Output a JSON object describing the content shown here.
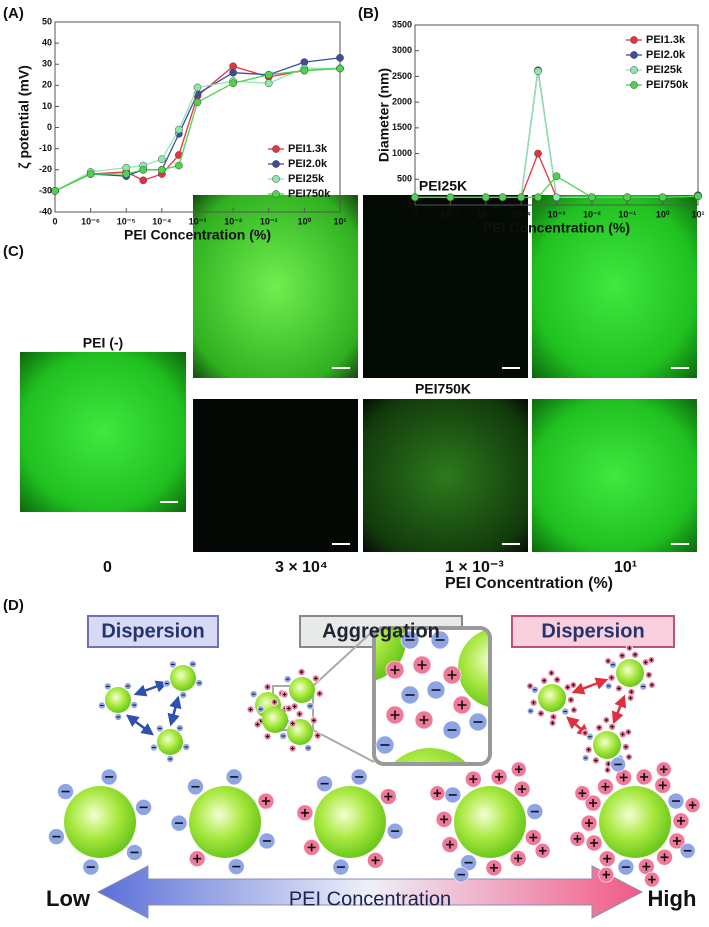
{
  "chart_data": [
    {
      "type": "line",
      "label": "(A)",
      "xlabel": "PEI Concentration (%)",
      "ylabel": "ζ potential (mV)",
      "xscale": "log",
      "xlim": [
        0,
        10
      ],
      "xticks": [
        {
          "value": 0,
          "label": "0"
        },
        {
          "value": 1e-06,
          "label": "10⁻⁶"
        },
        {
          "value": 1e-05,
          "label": "10⁻⁵"
        },
        {
          "value": 0.0001,
          "label": "10⁻⁴"
        },
        {
          "value": 0.001,
          "label": "10⁻³"
        },
        {
          "value": 0.01,
          "label": "10⁻²"
        },
        {
          "value": 0.1,
          "label": "10⁻¹"
        },
        {
          "value": 1,
          "label": "10⁰"
        },
        {
          "value": 10,
          "label": "10¹"
        }
      ],
      "ylim": [
        -40,
        50
      ],
      "yticks": [
        -40,
        -30,
        -20,
        -10,
        0,
        10,
        20,
        30,
        40,
        50
      ],
      "grid": false,
      "legend": "lower right",
      "x": [
        0,
        1e-06,
        1e-05,
        3e-05,
        0.0001,
        0.0003,
        0.001,
        0.01,
        0.1,
        1,
        10
      ],
      "series": [
        {
          "name": "PEI1.3k",
          "color": "#e8323c",
          "values": [
            -30,
            -22,
            -21,
            -25,
            -22,
            -13,
            15,
            29,
            24,
            27,
            28
          ]
        },
        {
          "name": "PEI2.0k",
          "color": "#3a4ea0",
          "values": [
            -30,
            -22,
            -23,
            -20,
            -20,
            -3,
            16,
            26,
            25,
            31,
            33
          ]
        },
        {
          "name": "PEI25k",
          "color": "#8ee8a8",
          "values": [
            -30,
            -21,
            -19,
            -18,
            -15,
            -1,
            19,
            22,
            21,
            28,
            28
          ]
        },
        {
          "name": "PEI750k",
          "color": "#4cd44c",
          "values": [
            -30,
            -22,
            -22,
            -20,
            -20,
            -18,
            12,
            21,
            25,
            27,
            28
          ]
        }
      ]
    },
    {
      "type": "line",
      "label": "(B)",
      "xlabel": "PEI Concentration (%)",
      "ylabel": "Diameter (nm)",
      "xscale": "log",
      "xlim": [
        0,
        10
      ],
      "xticks": [
        {
          "value": 0,
          "label": "0"
        },
        {
          "value": 1e-06,
          "label": "10⁻⁶"
        },
        {
          "value": 1e-05,
          "label": "10⁻⁵"
        },
        {
          "value": 0.0001,
          "label": "10⁻⁴"
        },
        {
          "value": 0.001,
          "label": "10⁻³"
        },
        {
          "value": 0.01,
          "label": "10⁻²"
        },
        {
          "value": 0.1,
          "label": "10⁻¹"
        },
        {
          "value": 1,
          "label": "10⁰"
        },
        {
          "value": 10,
          "label": "10¹"
        }
      ],
      "ylim": [
        0,
        3500
      ],
      "yticks": [
        0,
        500,
        1000,
        1500,
        2000,
        2500,
        3000,
        3500
      ],
      "grid": false,
      "legend": "upper right",
      "x": [
        0,
        1e-06,
        1e-05,
        3e-05,
        0.0001,
        0.0003,
        0.001,
        0.01,
        0.1,
        1,
        10
      ],
      "series": [
        {
          "name": "PEI1.3k",
          "color": "#e8323c",
          "values": [
            150,
            150,
            150,
            150,
            150,
            1000,
            150,
            150,
            150,
            150,
            180
          ]
        },
        {
          "name": "PEI2.0k",
          "color": "#3a4ea0",
          "values": [
            150,
            150,
            150,
            150,
            150,
            2620,
            150,
            150,
            150,
            150,
            190
          ]
        },
        {
          "name": "PEI25k",
          "color": "#8ee8a8",
          "values": [
            150,
            150,
            150,
            150,
            150,
            2600,
            150,
            150,
            150,
            150,
            170
          ]
        },
        {
          "name": "PEI750k",
          "color": "#4cd44c",
          "values": [
            150,
            150,
            150,
            150,
            150,
            150,
            560,
            150,
            150,
            150,
            170
          ]
        }
      ]
    }
  ],
  "panel_c": {
    "label": "(C)",
    "control": "PEI (-)",
    "row1": "PEI25K",
    "row2": "PEI750K",
    "concentrations": [
      "0",
      "3 × 10⁴",
      "1 × 10⁻³",
      "10¹"
    ],
    "xlabel": "PEI Concentration (%)"
  },
  "panel_d": {
    "label": "(D)",
    "states": [
      "Dispersion",
      "Aggregation",
      "Dispersion"
    ],
    "low": "Low",
    "arrow_label": "PEI Concentration",
    "high": "High"
  }
}
